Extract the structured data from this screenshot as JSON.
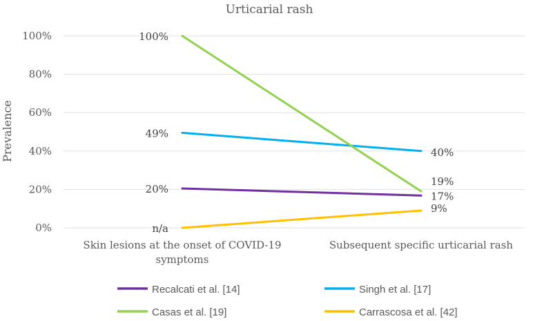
{
  "chart_data": {
    "type": "line",
    "title": "Urticarial rash",
    "xlabel": "",
    "ylabel": "Prevalence",
    "ylim": [
      0,
      100
    ],
    "yticks": [
      "0%",
      "20%",
      "40%",
      "60%",
      "80%",
      "100%"
    ],
    "categories": [
      "Skin lesions at the onset of COVID-19 symptoms",
      "Subsequent specific urticarial rash"
    ],
    "category_lines": [
      [
        "Skin lesions at the onset of COVID-19",
        "symptoms"
      ],
      [
        "Subsequent specific urticarial rash"
      ]
    ],
    "series": [
      {
        "name": "Recalcati et al. [14]",
        "color": "#7030a0",
        "values": [
          20.5,
          16.8
        ],
        "labels": [
          "20%",
          "17%"
        ]
      },
      {
        "name": "Singh et al. [17]",
        "color": "#00b0f0",
        "values": [
          49.5,
          40
        ],
        "labels": [
          "49%",
          "40%"
        ]
      },
      {
        "name": "Casas et al. [19]",
        "color": "#92d050",
        "values": [
          100,
          19
        ],
        "labels": [
          "100%",
          "19%"
        ]
      },
      {
        "name": "Carrascosa et al. [42]",
        "color": "#ffc000",
        "values": [
          0,
          9
        ],
        "labels": [
          "n/a",
          "9%"
        ]
      }
    ],
    "grid": true,
    "legend": "bottom"
  }
}
